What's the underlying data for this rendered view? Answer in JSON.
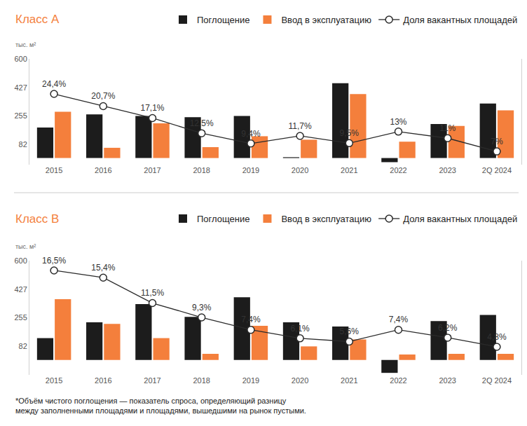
{
  "chart_data": [
    {
      "type": "bar",
      "title": "Класс А",
      "ylabel": "тыс. м²",
      "categories": [
        "2015",
        "2016",
        "2017",
        "2018",
        "2019",
        "2020",
        "2021",
        "2022",
        "2023",
        "2Q 2024"
      ],
      "series": [
        {
          "name": "Поглощение",
          "type": "bar",
          "color": "#1c1c1c",
          "values": [
            185,
            264,
            255,
            247,
            255,
            5,
            453,
            -25,
            206,
            330
          ]
        },
        {
          "name": "Ввод в эксплуатацию",
          "type": "bar",
          "color": "#f47f3c",
          "values": [
            280,
            62,
            210,
            66,
            132,
            111,
            387,
            99,
            194,
            288
          ]
        },
        {
          "name": "Доля вакантных площадей",
          "type": "line",
          "axis": "y2",
          "color": "#2b2b2b",
          "marker": "circle",
          "data_labels": true,
          "values": [
            24.4,
            20.7,
            17.1,
            12.5,
            9.4,
            11.7,
            9.5,
            13,
            11,
            7
          ],
          "value_labels": [
            "24,4%",
            "20,7%",
            "17,1%",
            "12,5%",
            "9,4%",
            "11,7%",
            "9,5%",
            "13%",
            "11%",
            "7%"
          ]
        }
      ],
      "ylim": [
        -40,
        600
      ],
      "yticks": [
        82,
        255,
        427,
        600
      ],
      "y2lim": [
        3,
        35
      ],
      "grid": false,
      "legend": "top right"
    },
    {
      "type": "bar",
      "title": "Класс В",
      "ylabel": "тыс. м²",
      "categories": [
        "2015",
        "2016",
        "2017",
        "2018",
        "2019",
        "2020",
        "2021",
        "2022",
        "2023",
        "2Q 2024"
      ],
      "series": [
        {
          "name": "Поглощение",
          "type": "bar",
          "color": "#1c1c1c",
          "values": [
            132,
            227,
            338,
            260,
            379,
            227,
            202,
            -78,
            235,
            272
          ]
        },
        {
          "name": "Ввод в эксплуатацию",
          "type": "bar",
          "color": "#f47f3c",
          "values": [
            367,
            218,
            132,
            37,
            206,
            82,
            124,
            33,
            37,
            37
          ]
        },
        {
          "name": "Доля вакантных площадей",
          "type": "line",
          "axis": "y2",
          "color": "#2b2b2b",
          "marker": "circle",
          "data_labels": true,
          "values": [
            16.5,
            15.4,
            11.5,
            9.3,
            7.4,
            6.1,
            5.6,
            7.4,
            6.2,
            4.8
          ],
          "value_labels": [
            "16,5%",
            "15,4%",
            "11,5%",
            "9,3%",
            "7,4%",
            "6,1%",
            "5,6%",
            "7,4%",
            "6,2%",
            "4,8%"
          ]
        }
      ],
      "ylim": [
        -90,
        600
      ],
      "yticks": [
        82,
        255,
        427,
        600
      ],
      "y2lim": [
        0.5,
        18
      ],
      "grid": false,
      "legend": "top right"
    }
  ],
  "footnote": [
    "*Объём чистого поглощения — показатель спроса, определяющий разницу",
    "между заполненными площадями и площадями, вышедшими на рынок пустыми."
  ]
}
